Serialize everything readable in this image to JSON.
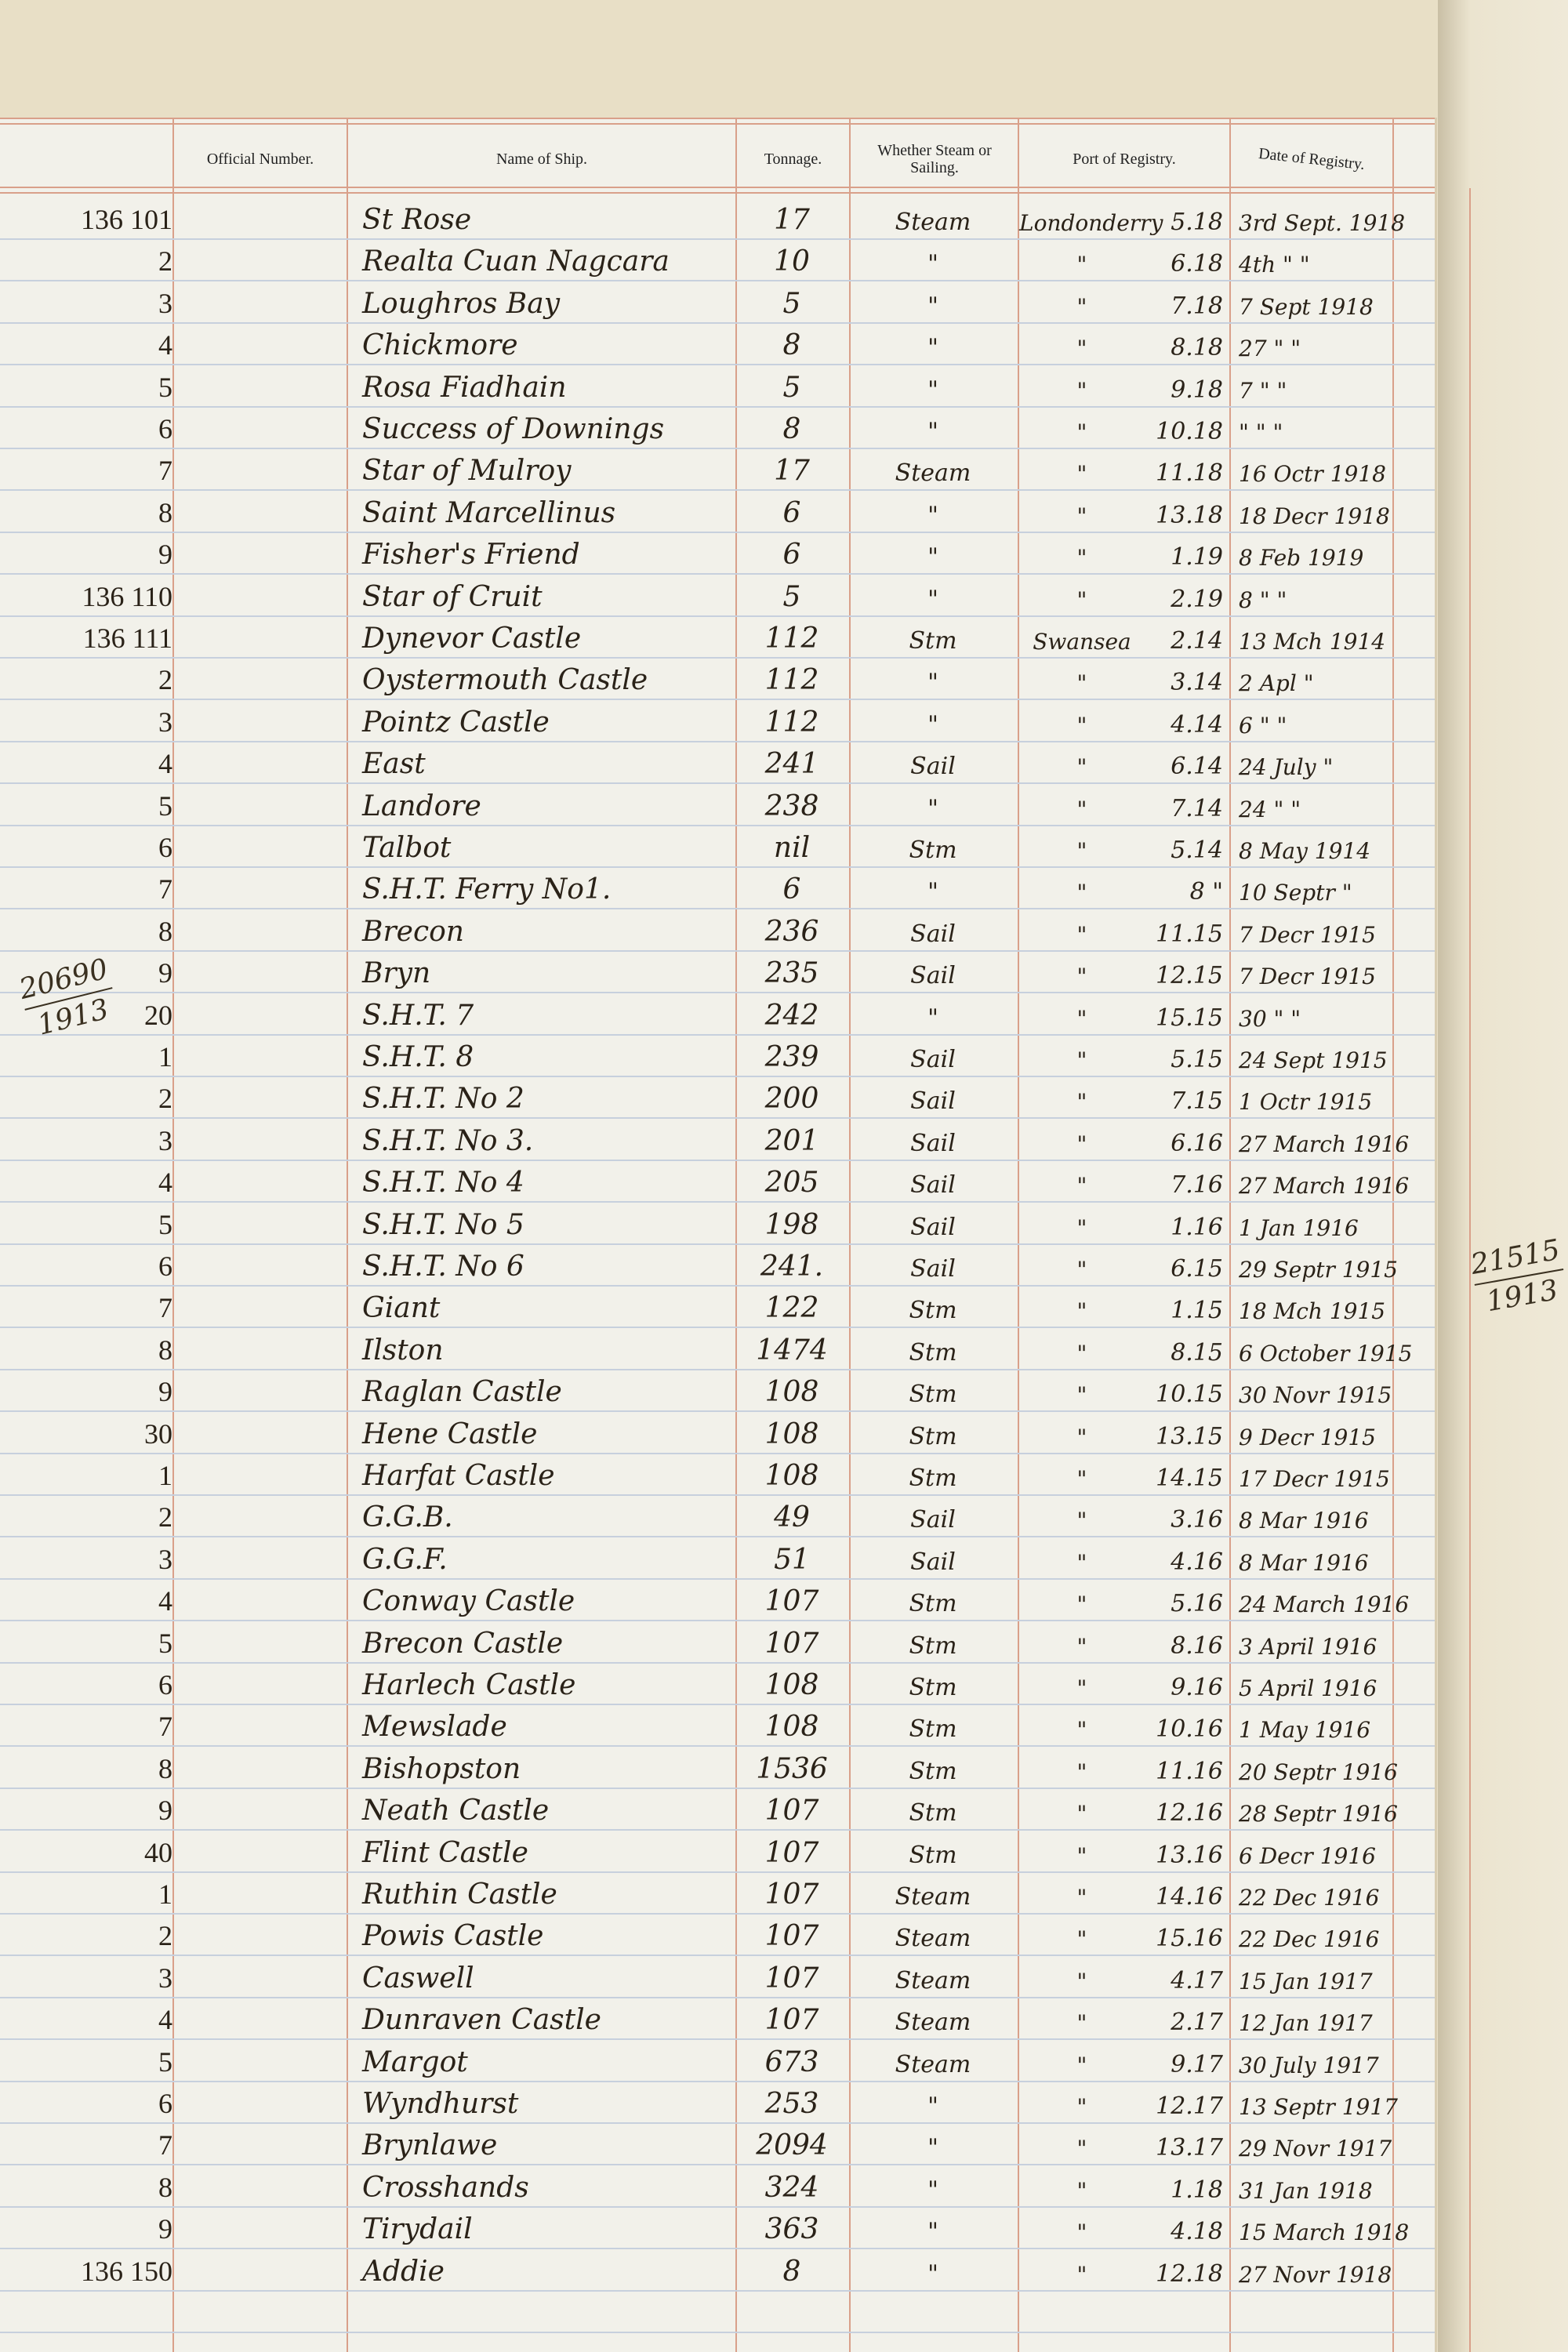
{
  "headers": {
    "official_number": "Official Number.",
    "name": "Name of Ship.",
    "tonnage": "Tonnage.",
    "rig": "Whether Steam or Sailing.",
    "port": "Port of Registry.",
    "date": "Date of Registry."
  },
  "margin_notes": {
    "left": {
      "top": "20690",
      "bottom": "1913"
    },
    "right": {
      "top": "21515",
      "bottom": "1913"
    }
  },
  "rows": [
    {
      "number": "136 101",
      "name": "St Rose",
      "tonnage": "17",
      "rig": "Steam",
      "port": "Londonderry",
      "port_no": "5.18",
      "date": "3rd Sept. 1918"
    },
    {
      "number": "2",
      "name": "Realta Cuan Nagcara",
      "tonnage": "10",
      "rig": "\"",
      "port": "\"",
      "port_no": "6.18",
      "date": "4th \" \""
    },
    {
      "number": "3",
      "name": "Loughros Bay",
      "tonnage": "5",
      "rig": "\"",
      "port": "\"",
      "port_no": "7.18",
      "date": "7 Sept 1918"
    },
    {
      "number": "4",
      "name": "Chickmore",
      "tonnage": "8",
      "rig": "\"",
      "port": "\"",
      "port_no": "8.18",
      "date": "27 \" \""
    },
    {
      "number": "5",
      "name": "Rosa Fiadhain",
      "tonnage": "5",
      "rig": "\"",
      "port": "\"",
      "port_no": "9.18",
      "date": "7 \" \""
    },
    {
      "number": "6",
      "name": "Success of Downings",
      "tonnage": "8",
      "rig": "\"",
      "port": "\"",
      "port_no": "10.18",
      "date": "\" \" \""
    },
    {
      "number": "7",
      "name": "Star of Mulroy",
      "tonnage": "17",
      "rig": "Steam",
      "port": "\"",
      "port_no": "11.18",
      "date": "16 Octr 1918"
    },
    {
      "number": "8",
      "name": "Saint Marcellinus",
      "tonnage": "6",
      "rig": "\"",
      "port": "\"",
      "port_no": "13.18",
      "date": "18 Decr 1918"
    },
    {
      "number": "9",
      "name": "Fisher's Friend",
      "tonnage": "6",
      "rig": "\"",
      "port": "\"",
      "port_no": "1.19",
      "date": "8 Feb 1919"
    },
    {
      "number": "136 110",
      "name": "Star of Cruit",
      "tonnage": "5",
      "rig": "\"",
      "port": "\"",
      "port_no": "2.19",
      "date": "8 \" \""
    },
    {
      "number": "136 111",
      "name": "Dynevor Castle",
      "tonnage": "112",
      "rig": "Stm",
      "port": "Swansea",
      "port_no": "2.14",
      "date": "13 Mch 1914"
    },
    {
      "number": "2",
      "name": "Oystermouth Castle",
      "tonnage": "112",
      "rig": "\"",
      "port": "\"",
      "port_no": "3.14",
      "date": "2 Apl \""
    },
    {
      "number": "3",
      "name": "Pointz Castle",
      "tonnage": "112",
      "rig": "\"",
      "port": "\"",
      "port_no": "4.14",
      "date": "6 \" \""
    },
    {
      "number": "4",
      "name": "East",
      "tonnage": "241",
      "rig": "Sail",
      "port": "\"",
      "port_no": "6.14",
      "date": "24 July \""
    },
    {
      "number": "5",
      "name": "Landore",
      "tonnage": "238",
      "rig": "\"",
      "port": "\"",
      "port_no": "7.14",
      "date": "24 \" \""
    },
    {
      "number": "6",
      "name": "Talbot",
      "tonnage": "nil",
      "rig": "Stm",
      "port": "\"",
      "port_no": "5.14",
      "date": "8 May 1914"
    },
    {
      "number": "7",
      "name": "S.H.T. Ferry No1.",
      "tonnage": "6",
      "rig": "\"",
      "port": "\"",
      "port_no": "8 \"",
      "date": "10 Septr \""
    },
    {
      "number": "8",
      "name": "Brecon",
      "tonnage": "236",
      "rig": "Sail",
      "port": "\"",
      "port_no": "11.15",
      "date": "7 Decr 1915"
    },
    {
      "number": "9",
      "name": "Bryn",
      "tonnage": "235",
      "rig": "Sail",
      "port": "\"",
      "port_no": "12.15",
      "date": "7 Decr 1915"
    },
    {
      "number": "20",
      "name": "S.H.T. 7",
      "tonnage": "242",
      "rig": "\"",
      "port": "\"",
      "port_no": "15.15",
      "date": "30 \" \""
    },
    {
      "number": "1",
      "name": "S.H.T. 8",
      "tonnage": "239",
      "rig": "Sail",
      "port": "\"",
      "port_no": "5.15",
      "date": "24 Sept 1915"
    },
    {
      "number": "2",
      "name": "S.H.T. No 2",
      "tonnage": "200",
      "rig": "Sail",
      "port": "\"",
      "port_no": "7.15",
      "date": "1 Octr 1915"
    },
    {
      "number": "3",
      "name": "S.H.T. No 3.",
      "tonnage": "201",
      "rig": "Sail",
      "port": "\"",
      "port_no": "6.16",
      "date": "27 March 1916"
    },
    {
      "number": "4",
      "name": "S.H.T. No 4",
      "tonnage": "205",
      "rig": "Sail",
      "port": "\"",
      "port_no": "7.16",
      "date": "27 March 1916"
    },
    {
      "number": "5",
      "name": "S.H.T. No 5",
      "tonnage": "198",
      "rig": "Sail",
      "port": "\"",
      "port_no": "1.16",
      "date": "1 Jan 1916"
    },
    {
      "number": "6",
      "name": "S.H.T. No 6",
      "tonnage": "241.",
      "rig": "Sail",
      "port": "\"",
      "port_no": "6.15",
      "date": "29 Septr 1915"
    },
    {
      "number": "7",
      "name": "Giant",
      "tonnage": "122",
      "rig": "Stm",
      "port": "\"",
      "port_no": "1.15",
      "date": "18 Mch 1915"
    },
    {
      "number": "8",
      "name": "Ilston",
      "tonnage": "1474",
      "rig": "Stm",
      "port": "\"",
      "port_no": "8.15",
      "date": "6 October 1915"
    },
    {
      "number": "9",
      "name": "Raglan Castle",
      "tonnage": "108",
      "rig": "Stm",
      "port": "\"",
      "port_no": "10.15",
      "date": "30 Novr 1915"
    },
    {
      "number": "30",
      "name": "Hene Castle",
      "tonnage": "108",
      "rig": "Stm",
      "port": "\"",
      "port_no": "13.15",
      "date": "9 Decr 1915"
    },
    {
      "number": "1",
      "name": "Harfat Castle",
      "tonnage": "108",
      "rig": "Stm",
      "port": "\"",
      "port_no": "14.15",
      "date": "17 Decr 1915"
    },
    {
      "number": "2",
      "name": "G.G.B.",
      "tonnage": "49",
      "rig": "Sail",
      "port": "\"",
      "port_no": "3.16",
      "date": "8 Mar 1916"
    },
    {
      "number": "3",
      "name": "G.G.F.",
      "tonnage": "51",
      "rig": "Sail",
      "port": "\"",
      "port_no": "4.16",
      "date": "8 Mar 1916"
    },
    {
      "number": "4",
      "name": "Conway Castle",
      "tonnage": "107",
      "rig": "Stm",
      "port": "\"",
      "port_no": "5.16",
      "date": "24 March 1916"
    },
    {
      "number": "5",
      "name": "Brecon Castle",
      "tonnage": "107",
      "rig": "Stm",
      "port": "\"",
      "port_no": "8.16",
      "date": "3 April 1916"
    },
    {
      "number": "6",
      "name": "Harlech Castle",
      "tonnage": "108",
      "rig": "Stm",
      "port": "\"",
      "port_no": "9.16",
      "date": "5 April 1916"
    },
    {
      "number": "7",
      "name": "Mewslade",
      "tonnage": "108",
      "rig": "Stm",
      "port": "\"",
      "port_no": "10.16",
      "date": "1 May 1916"
    },
    {
      "number": "8",
      "name": "Bishopston",
      "tonnage": "1536",
      "rig": "Stm",
      "port": "\"",
      "port_no": "11.16",
      "date": "20 Septr 1916"
    },
    {
      "number": "9",
      "name": "Neath Castle",
      "tonnage": "107",
      "rig": "Stm",
      "port": "\"",
      "port_no": "12.16",
      "date": "28 Septr 1916"
    },
    {
      "number": "40",
      "name": "Flint Castle",
      "tonnage": "107",
      "rig": "Stm",
      "port": "\"",
      "port_no": "13.16",
      "date": "6 Decr 1916"
    },
    {
      "number": "1",
      "name": "Ruthin Castle",
      "tonnage": "107",
      "rig": "Steam",
      "port": "\"",
      "port_no": "14.16",
      "date": "22 Dec 1916"
    },
    {
      "number": "2",
      "name": "Powis Castle",
      "tonnage": "107",
      "rig": "Steam",
      "port": "\"",
      "port_no": "15.16",
      "date": "22 Dec 1916"
    },
    {
      "number": "3",
      "name": "Caswell",
      "tonnage": "107",
      "rig": "Steam",
      "port": "\"",
      "port_no": "4.17",
      "date": "15 Jan 1917"
    },
    {
      "number": "4",
      "name": "Dunraven Castle",
      "tonnage": "107",
      "rig": "Steam",
      "port": "\"",
      "port_no": "2.17",
      "date": "12 Jan 1917"
    },
    {
      "number": "5",
      "name": "Margot",
      "tonnage": "673",
      "rig": "Steam",
      "port": "\"",
      "port_no": "9.17",
      "date": "30 July 1917"
    },
    {
      "number": "6",
      "name": "Wyndhurst",
      "tonnage": "253",
      "rig": "\"",
      "port": "\"",
      "port_no": "12.17",
      "date": "13 Septr 1917"
    },
    {
      "number": "7",
      "name": "Brynlawe",
      "tonnage": "2094",
      "rig": "\"",
      "port": "\"",
      "port_no": "13.17",
      "date": "29 Novr 1917"
    },
    {
      "number": "8",
      "name": "Crosshands",
      "tonnage": "324",
      "rig": "\"",
      "port": "\"",
      "port_no": "1.18",
      "date": "31 Jan 1918"
    },
    {
      "number": "9",
      "name": "Tirydail",
      "tonnage": "363",
      "rig": "\"",
      "port": "\"",
      "port_no": "4.18",
      "date": "15 March 1918"
    },
    {
      "number": "136 150",
      "name": "Addie",
      "tonnage": "8",
      "rig": "\"",
      "port": "\"",
      "port_no": "12.18",
      "date": "27 Novr 1918"
    }
  ]
}
